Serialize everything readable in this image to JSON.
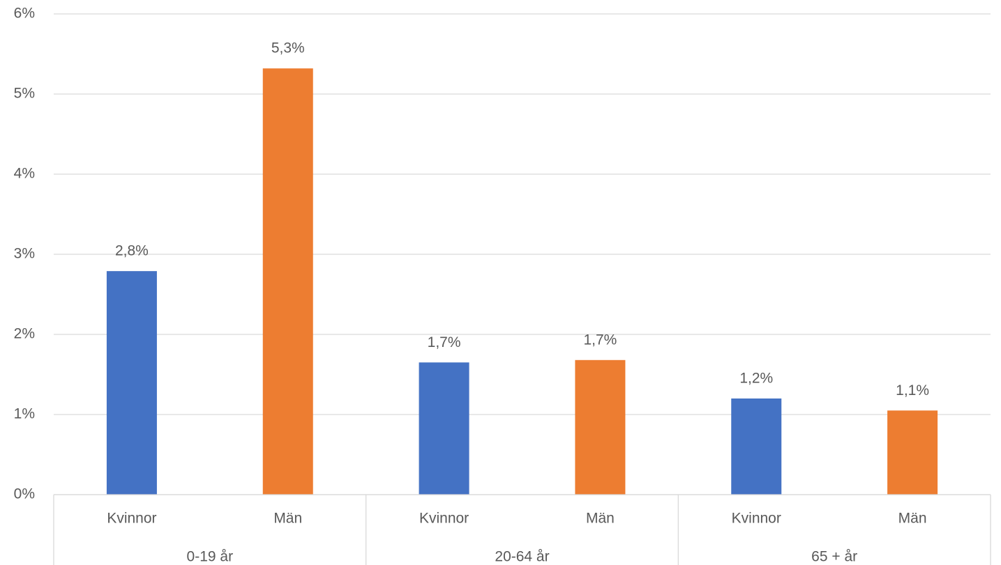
{
  "chart_data": {
    "type": "bar",
    "categories": [
      "Kvinnor",
      "Män",
      "Kvinnor",
      "Män",
      "Kvinnor",
      "Män"
    ],
    "groups": [
      "0-19 år",
      "20-64 år",
      "65 + år"
    ],
    "values": [
      2.79,
      5.32,
      1.65,
      1.68,
      1.2,
      1.05
    ],
    "value_labels": [
      "2,8%",
      "5,3%",
      "1,7%",
      "1,7%",
      "1,2%",
      "1,1%"
    ],
    "colors": [
      "#4472c4",
      "#ed7d31",
      "#4472c4",
      "#ed7d31",
      "#4472c4",
      "#ed7d31"
    ],
    "ylim": [
      0,
      6
    ],
    "yticks": [
      {
        "value": 0,
        "label": "0%"
      },
      {
        "value": 1,
        "label": "1%"
      },
      {
        "value": 2,
        "label": "2%"
      },
      {
        "value": 3,
        "label": "3%"
      },
      {
        "value": 4,
        "label": "4%"
      },
      {
        "value": 5,
        "label": "5%"
      },
      {
        "value": 6,
        "label": "6%"
      }
    ],
    "grid": true
  }
}
